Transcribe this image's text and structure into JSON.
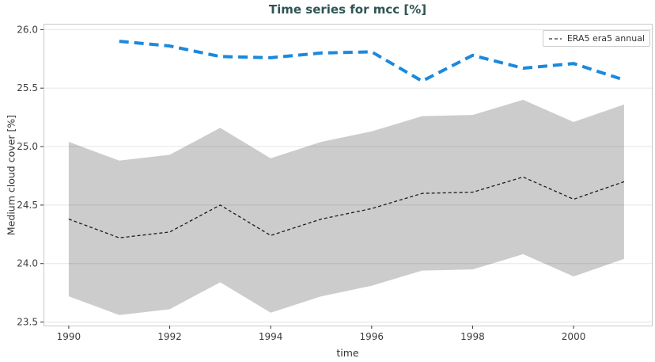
{
  "colors": {
    "title": "#2f5555",
    "blue_line": "#1b89dd",
    "mean_line": "#1a1a1a",
    "band_fill": "#cccccc",
    "grid_line": "rgba(0,0,0,0.10)",
    "spine": "#c9c9c9",
    "tick_mark": "#333333",
    "tick_text": "#3d3d3d",
    "legend_border": "#cccccc",
    "legend_text": "#333333"
  },
  "chart_data": {
    "type": "line",
    "title": "Time series for mcc [%]",
    "xlabel": "time",
    "ylabel": "Medium cloud cover [%]",
    "xlim": [
      1989.5,
      2001.55
    ],
    "ylim": [
      23.47,
      26.05
    ],
    "x_ticks": [
      1990,
      1992,
      1994,
      1996,
      1998,
      2000
    ],
    "y_ticks": [
      23.5,
      24.0,
      24.5,
      25.0,
      25.5,
      26.0
    ],
    "y_tick_labels": [
      "23.5",
      "24.0",
      "24.5",
      "25.0",
      "25.5",
      "26.0"
    ],
    "grid": "horizontal",
    "legend": {
      "position": "upper-right",
      "entries": [
        "ERA5 era5 annual"
      ]
    },
    "series": [
      {
        "name": "ERA5 era5 annual",
        "description": "thin black dashed annual mean line",
        "x": [
          1990,
          1991,
          1992,
          1993,
          1994,
          1995,
          1996,
          1997,
          1998,
          1999,
          2000,
          2001
        ],
        "y": [
          24.38,
          24.22,
          24.27,
          24.5,
          24.24,
          24.38,
          24.47,
          24.6,
          24.61,
          24.74,
          24.55,
          24.7
        ],
        "line": {
          "color_key": "mean_line",
          "dash": "4 3",
          "width": 1.3
        }
      },
      {
        "name": "",
        "description": "thick blue dashed line (unlabeled)",
        "x": [
          1991,
          1992,
          1993,
          1994,
          1995,
          1996,
          1997,
          1998,
          1999,
          2000,
          2001
        ],
        "y": [
          25.9,
          25.86,
          25.77,
          25.76,
          25.8,
          25.81,
          25.56,
          25.78,
          25.67,
          25.71,
          25.57
        ],
        "line": {
          "color_key": "blue_line",
          "dash": "12 7",
          "width": 4
        }
      }
    ],
    "band": {
      "attached_to": "ERA5 era5 annual",
      "fill_color_key": "band_fill",
      "x": [
        1990,
        1991,
        1992,
        1993,
        1994,
        1995,
        1996,
        1997,
        1998,
        1999,
        2000,
        2001
      ],
      "upper": [
        25.04,
        24.88,
        24.93,
        25.16,
        24.9,
        25.04,
        25.13,
        25.26,
        25.27,
        25.4,
        25.21,
        25.36
      ],
      "lower": [
        23.72,
        23.56,
        23.61,
        23.84,
        23.58,
        23.72,
        23.81,
        23.94,
        23.95,
        24.08,
        23.89,
        24.04
      ]
    }
  }
}
